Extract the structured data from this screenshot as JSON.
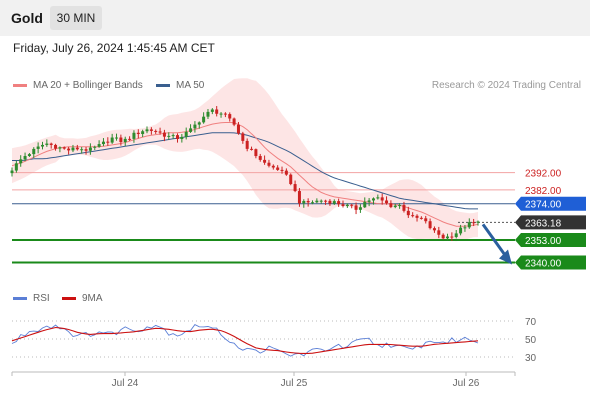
{
  "header": {
    "title": "Gold",
    "timeframe": "30 MIN",
    "datetime": "Friday, July 26, 2024 1:45:45 AM CET"
  },
  "legend": {
    "ma20_label": "MA 20 + Bollinger Bands",
    "ma50_label": "MA 50",
    "credit": "Research © 2024 Trading Central",
    "rsi_label": "RSI",
    "rsi9_label": "9MA"
  },
  "colors": {
    "bull": "#2e8b2e",
    "bear": "#cc2222",
    "ma20": "#f08080",
    "ma50": "#3a5f8f",
    "bollinger_fill": "#fde0e0",
    "resistance": "#f3a3a3",
    "support": "#1a8a1a",
    "pivot": "#3a5f8f",
    "pivot_badge": "#1f5fd6",
    "current_badge": "#333333",
    "arrow": "#2a5f9e",
    "rsi": "#5b7fd6",
    "rsi9": "#cc1111"
  },
  "chart_data": [
    {
      "type": "candlestick",
      "instrument": "Gold",
      "timeframe": "30 MIN",
      "ylim": [
        2331,
        2434
      ],
      "x_ticks": [
        "Jul 24",
        "Jul 25",
        "Jul 26"
      ],
      "levels": [
        {
          "label": "2392.00",
          "value": 2392.0,
          "kind": "resistance"
        },
        {
          "label": "2382.00",
          "value": 2382.0,
          "kind": "resistance"
        },
        {
          "label": "2374.00",
          "value": 2374.0,
          "kind": "pivot"
        },
        {
          "label": "2363.18",
          "value": 2363.18,
          "kind": "current"
        },
        {
          "label": "2353.00",
          "value": 2353.0,
          "kind": "support"
        },
        {
          "label": "2340.00",
          "value": 2340.0,
          "kind": "support"
        }
      ],
      "close_path": [
        2394,
        2401,
        2405,
        2409,
        2407,
        2405,
        2406,
        2405,
        2408,
        2412,
        2410,
        2414,
        2417,
        2416,
        2413,
        2412,
        2416,
        2423,
        2428,
        2426,
        2420,
        2408,
        2402,
        2396,
        2394,
        2388,
        2374,
        2375,
        2376,
        2375,
        2373,
        2371,
        2376,
        2377,
        2373,
        2373,
        2366,
        2365,
        2358,
        2354,
        2357,
        2362,
        2363
      ],
      "ma20_path": [
        2396,
        2398,
        2401,
        2404,
        2406,
        2407,
        2407,
        2407,
        2407,
        2408,
        2409,
        2411,
        2413,
        2414,
        2415,
        2415,
        2416,
        2418,
        2420,
        2421,
        2421,
        2418,
        2412,
        2405,
        2400,
        2396,
        2390,
        2384,
        2380,
        2378,
        2377,
        2376,
        2375,
        2374,
        2374,
        2373,
        2371,
        2369,
        2366,
        2363,
        2361,
        2361,
        2362
      ],
      "ma50_path": [
        2399,
        2399,
        2400,
        2400,
        2401,
        2402,
        2403,
        2404,
        2405,
        2406,
        2407,
        2408,
        2409,
        2410,
        2411,
        2412,
        2413,
        2414,
        2415,
        2415,
        2415,
        2414,
        2412,
        2410,
        2407,
        2404,
        2400,
        2396,
        2392,
        2389,
        2387,
        2385,
        2383,
        2381,
        2379,
        2377,
        2376,
        2375,
        2374,
        2373,
        2372,
        2371,
        2371
      ],
      "forecast": {
        "from": 2362,
        "to": 2340
      }
    },
    {
      "type": "line",
      "indicator": "RSI",
      "ylim": [
        20,
        80
      ],
      "y_ticks": [
        70,
        50,
        30
      ],
      "rsi_path": [
        44,
        55,
        60,
        64,
        65,
        60,
        52,
        56,
        58,
        55,
        62,
        60,
        63,
        66,
        58,
        55,
        61,
        66,
        62,
        55,
        45,
        38,
        36,
        40,
        36,
        32,
        33,
        36,
        38,
        42,
        40,
        46,
        50,
        42,
        45,
        40,
        37,
        44,
        48,
        46,
        49,
        50,
        48
      ],
      "rsi9_path": [
        48,
        52,
        56,
        60,
        63,
        61,
        57,
        55,
        56,
        56,
        57,
        58,
        60,
        62,
        61,
        59,
        58,
        60,
        61,
        59,
        53,
        46,
        40,
        38,
        37,
        35,
        34,
        34,
        36,
        38,
        40,
        42,
        44,
        44,
        44,
        43,
        42,
        42,
        44,
        45,
        46,
        47,
        48
      ]
    }
  ]
}
